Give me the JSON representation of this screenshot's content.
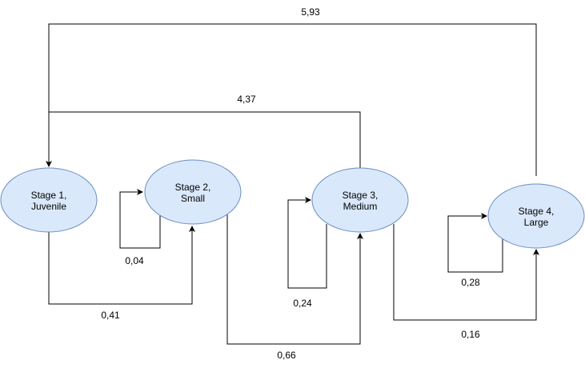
{
  "diagram": {
    "nodes": [
      {
        "id": "stage1",
        "line1": "Stage 1,",
        "line2": "Juvenile"
      },
      {
        "id": "stage2",
        "line1": "Stage 2,",
        "line2": "Small"
      },
      {
        "id": "stage3",
        "line1": "Stage 3,",
        "line2": "Medium"
      },
      {
        "id": "stage4",
        "line1": "Stage 4,",
        "line2": "Large"
      }
    ],
    "edges": [
      {
        "from": "stage4",
        "to": "stage1",
        "label": "5,93"
      },
      {
        "from": "stage3",
        "to": "stage1",
        "label": "4,37"
      },
      {
        "from": "stage1",
        "to": "stage2",
        "label": "0,41"
      },
      {
        "from": "stage2",
        "to": "stage2",
        "label": "0,04"
      },
      {
        "from": "stage2",
        "to": "stage3",
        "label": "0,66"
      },
      {
        "from": "stage3",
        "to": "stage3",
        "label": "0,24"
      },
      {
        "from": "stage3",
        "to": "stage4",
        "label": "0,16"
      },
      {
        "from": "stage4",
        "to": "stage4",
        "label": "0,28"
      }
    ],
    "colors": {
      "node_fill": "#dae8fc",
      "node_stroke": "#6c8ebf",
      "edge": "#000000"
    }
  }
}
